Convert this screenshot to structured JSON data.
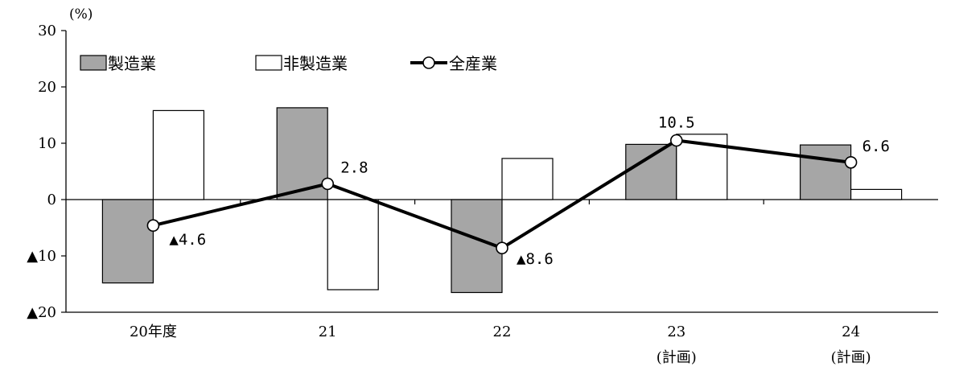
{
  "chart_data": {
    "type": "bar",
    "unit_label": "(%)",
    "ylim": [
      -20,
      30
    ],
    "yticks": [
      30,
      20,
      10,
      0,
      -10,
      -20
    ],
    "ytick_labels": [
      "30",
      "20",
      "10",
      "0",
      "▲10",
      "▲20"
    ],
    "categories": [
      "20年度",
      "21",
      "22",
      "23",
      "24"
    ],
    "category_sublabels": [
      "",
      "",
      "",
      "(計画)",
      "(計画)"
    ],
    "series": [
      {
        "name": "製造業",
        "kind": "bar",
        "color": "#a6a6a6",
        "values": [
          -14.8,
          16.3,
          -16.5,
          9.8,
          9.7
        ]
      },
      {
        "name": "非製造業",
        "kind": "bar",
        "color": "#ffffff",
        "values": [
          15.8,
          -16.0,
          7.3,
          11.6,
          1.8
        ]
      },
      {
        "name": "全産業",
        "kind": "line",
        "color": "#000000",
        "values": [
          -4.6,
          2.8,
          -8.6,
          10.5,
          6.6
        ]
      }
    ],
    "line_labels": [
      "▲4.6",
      "2.8",
      "▲8.6",
      "10.5",
      "6.6"
    ],
    "legend": {
      "placement": "top-left"
    },
    "grid": false
  }
}
